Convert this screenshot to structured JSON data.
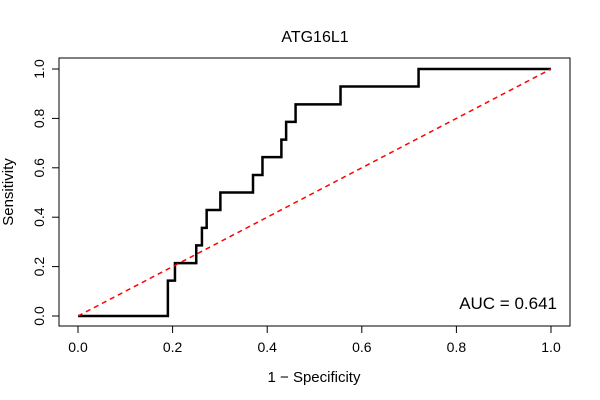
{
  "chart_data": {
    "type": "line",
    "title": "ATG16L1",
    "xlabel": "1 − Specificity",
    "ylabel": "Sensitivity",
    "xlim": [
      0,
      1
    ],
    "ylim": [
      0,
      1
    ],
    "x_ticks": [
      0.0,
      0.2,
      0.4,
      0.6,
      0.8,
      1.0
    ],
    "y_ticks": [
      0.0,
      0.2,
      0.4,
      0.6,
      0.8,
      1.0
    ],
    "x_tick_labels": [
      "0.0",
      "0.2",
      "0.4",
      "0.6",
      "0.8",
      "1.0"
    ],
    "y_tick_labels": [
      "0.0",
      "0.2",
      "0.4",
      "0.6",
      "0.8",
      "1.0"
    ],
    "grid": false,
    "annotation": "AUC = 0.641",
    "series": [
      {
        "color": "#000000",
        "style": "solid",
        "x": [
          0.0,
          0.19,
          0.19,
          0.205,
          0.205,
          0.25,
          0.25,
          0.262,
          0.262,
          0.272,
          0.272,
          0.301,
          0.301,
          0.37,
          0.37,
          0.39,
          0.39,
          0.43,
          0.43,
          0.44,
          0.44,
          0.46,
          0.46,
          0.555,
          0.555,
          0.72,
          0.72,
          1.0
        ],
        "y": [
          0.0,
          0.0,
          0.143,
          0.143,
          0.214,
          0.214,
          0.286,
          0.286,
          0.357,
          0.357,
          0.429,
          0.429,
          0.5,
          0.5,
          0.571,
          0.571,
          0.643,
          0.643,
          0.714,
          0.714,
          0.786,
          0.786,
          0.857,
          0.857,
          0.929,
          0.929,
          1.0,
          1.0
        ]
      },
      {
        "color": "#ff0000",
        "style": "dashed",
        "x": [
          0.0,
          1.0
        ],
        "y": [
          0.0,
          1.0
        ]
      }
    ]
  }
}
